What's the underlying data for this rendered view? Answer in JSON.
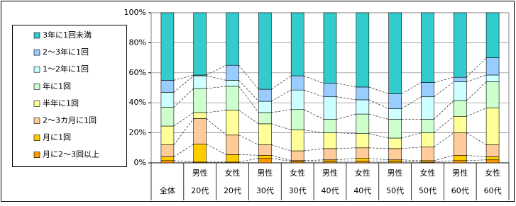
{
  "chart_data": {
    "type": "stacked_bar_percent",
    "categories": [
      "全体",
      "20代",
      "20代",
      "30代",
      "30代",
      "40代",
      "40代",
      "50代",
      "50代",
      "60代",
      "60代"
    ],
    "category_groups": [
      null,
      "男性",
      "女性",
      "男性",
      "女性",
      "男性",
      "女性",
      "男性",
      "女性",
      "男性",
      "女性"
    ],
    "series": [
      {
        "name": "月に2〜3回以上",
        "color": "#ff9900",
        "values": [
          1.5,
          0.5,
          0.5,
          3,
          1,
          1,
          1,
          1,
          0.5,
          1.5,
          2
        ]
      },
      {
        "name": "月に1回",
        "color": "#ffcc00",
        "values": [
          2.5,
          12,
          5,
          2,
          0.5,
          1,
          2,
          1,
          1,
          3.5,
          2
        ]
      },
      {
        "name": "2〜3カ月に1回",
        "color": "#ffcc99",
        "values": [
          8,
          17,
          13,
          7,
          6.5,
          7.5,
          7,
          7.5,
          9,
          15,
          8
        ]
      },
      {
        "name": "半年に1回",
        "color": "#ffff99",
        "values": [
          12.5,
          4,
          16.5,
          14,
          14,
          10.5,
          9.5,
          7,
          9.5,
          11,
          24.5
        ]
      },
      {
        "name": "年に1回",
        "color": "#ccffcc",
        "values": [
          12.5,
          16,
          16,
          7.5,
          13.5,
          9,
          13,
          12.5,
          9,
          10.5,
          17.5
        ]
      },
      {
        "name": "1〜2年に1回",
        "color": "#ccffff",
        "values": [
          10,
          8.5,
          4,
          7.5,
          13,
          15,
          9.5,
          7,
          15,
          12.5,
          4.5
        ]
      },
      {
        "name": "2〜3年に1回",
        "color": "#99ccff",
        "values": [
          8,
          0.5,
          10,
          8,
          9.5,
          9,
          8.5,
          10,
          9.5,
          3,
          11.5
        ]
      },
      {
        "name": "3年に1回未満",
        "color": "#33cccc",
        "values": [
          45,
          41.5,
          35,
          51,
          42,
          47,
          49.5,
          54,
          46.5,
          43,
          30
        ]
      }
    ],
    "ylim": [
      0,
      100
    ],
    "yticks": [
      {
        "value": 0,
        "label": "0%"
      },
      {
        "value": 20,
        "label": "20%"
      },
      {
        "value": 40,
        "label": "40%"
      },
      {
        "value": 60,
        "label": "60%"
      },
      {
        "value": 80,
        "label": "80%"
      },
      {
        "value": 100,
        "label": "100%"
      }
    ],
    "grid": true,
    "series_lines": true,
    "legend": "left"
  }
}
